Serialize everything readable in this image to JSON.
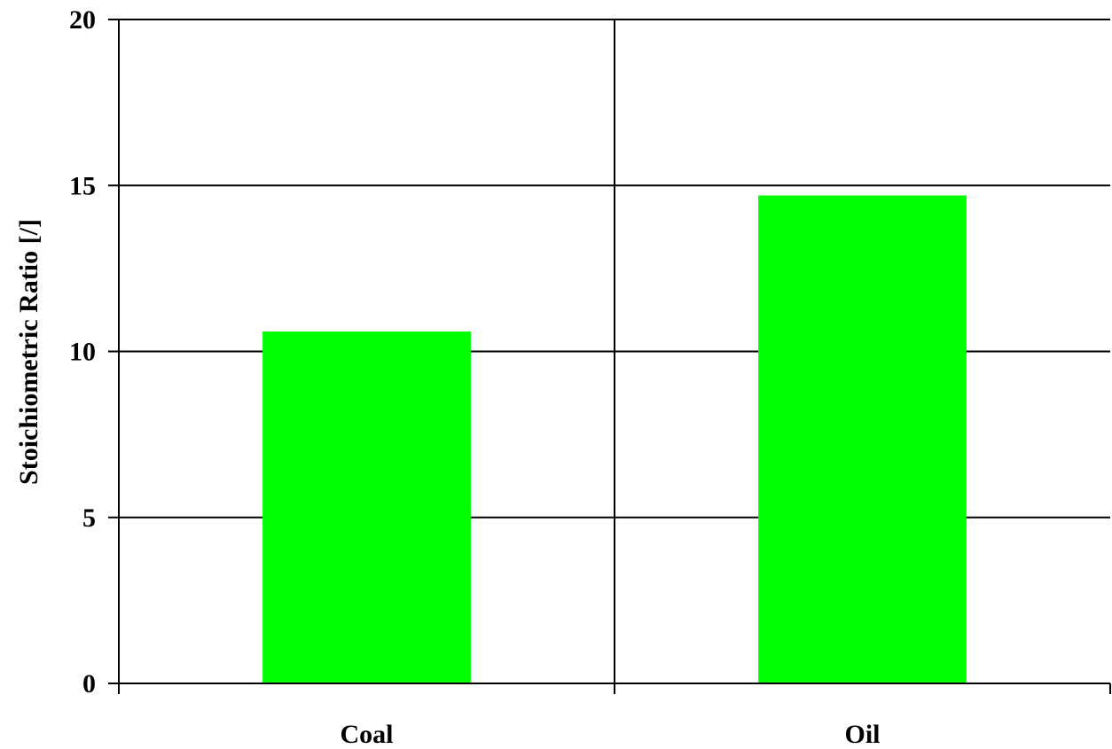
{
  "chart_data": {
    "type": "bar",
    "categories": [
      "Coal",
      "Oil"
    ],
    "values": [
      10.6,
      14.7
    ],
    "xlabel": "",
    "ylabel": "Stoichiometric Ratio [/]",
    "ylim": [
      0,
      20
    ],
    "yticks": [
      0,
      5,
      10,
      15,
      20
    ],
    "grid": true,
    "bar_color": "#00ff00"
  }
}
